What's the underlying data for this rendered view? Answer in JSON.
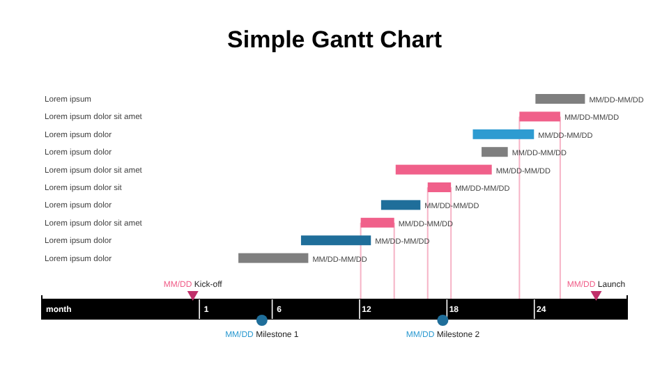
{
  "chart_data": {
    "type": "bar",
    "orientation": "horizontal",
    "title": "Simple Gantt Chart",
    "xlabel": "month",
    "categories": [
      "Lorem ipsum",
      "Lorem ipsum dolor sit amet",
      "Lorem ipsum dolor",
      "Lorem ipsum dolor",
      "Lorem ipsum dolor sit amet",
      "Lorem ipsum dolor sit",
      "Lorem ipsum dolor",
      "Lorem ipsum dolor sit amet",
      "Lorem ipsum dolor",
      "Lorem ipsum dolor"
    ],
    "base": [
      23.6,
      22.5,
      19.3,
      19.9,
      14.0,
      16.2,
      13.0,
      11.6,
      7.5,
      3.2
    ],
    "values": [
      3.4,
      2.8,
      4.2,
      1.8,
      6.6,
      1.6,
      2.7,
      2.3,
      4.8,
      4.8
    ],
    "colors": [
      "#7f7f7f",
      "#f0608a",
      "#2e9bd1",
      "#7f7f7f",
      "#f0608a",
      "#f0608a",
      "#1f6e9a",
      "#f0608a",
      "#1f6e9a",
      "#7f7f7f"
    ],
    "value_labels": [
      "MM/DD-MM/DD",
      "MM/DD-MM/DD",
      "MM/DD-MM/DD",
      "MM/DD-MM/DD",
      "MM/DD-MM/DD",
      "MM/DD-MM/DD",
      "MM/DD-MM/DD",
      "MM/DD-MM/DD",
      "MM/DD-MM/DD",
      "MM/DD-MM/DD"
    ],
    "xlim": [
      -10.3,
      29.9
    ],
    "xticks": [
      1,
      6,
      12,
      18,
      24
    ],
    "ref_lines": [
      {
        "axis": "x",
        "value": 11.6,
        "color": "#f6b3c6"
      },
      {
        "axis": "x",
        "value": 13.9,
        "color": "#f6b3c6"
      },
      {
        "axis": "x",
        "value": 16.2,
        "color": "#f6b3c6"
      },
      {
        "axis": "x",
        "value": 17.8,
        "color": "#f6b3c6"
      },
      {
        "axis": "x",
        "value": 22.5,
        "color": "#f6b3c6"
      },
      {
        "axis": "x",
        "value": 25.3,
        "color": "#f6b3c6"
      }
    ],
    "annotations": [
      "MM/DD Kick-off",
      "MM/DD Launch",
      "MM/DD Milestone 1",
      "MM/DD Milestone 2"
    ]
  }
}
